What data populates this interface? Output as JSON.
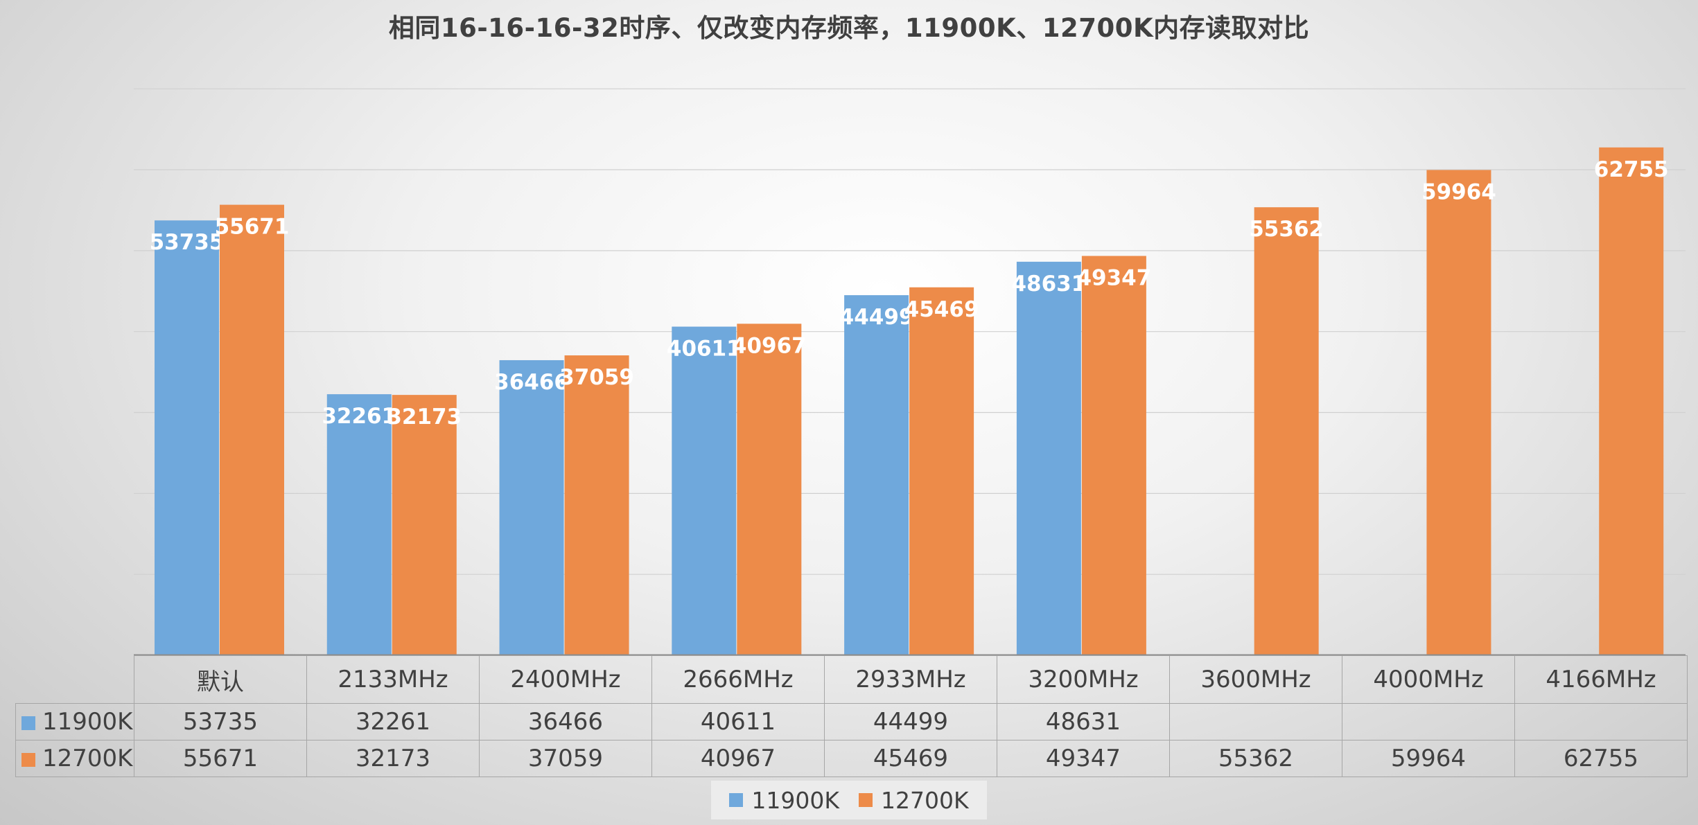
{
  "chart_data": {
    "type": "bar",
    "title": "相同16-16-16-32时序、仅改变内存频率，11900K、12700K内存读取对比",
    "categories": [
      "默认",
      "2133MHz",
      "2400MHz",
      "2666MHz",
      "2933MHz",
      "3200MHz",
      "3600MHz",
      "4000MHz",
      "4166MHz"
    ],
    "series": [
      {
        "name": "11900K",
        "color": "#6fa8dc",
        "values": [
          53735,
          32261,
          36466,
          40611,
          44499,
          48631,
          null,
          null,
          null
        ]
      },
      {
        "name": "12700K",
        "color": "#ed8b49",
        "values": [
          55671,
          32173,
          37059,
          40967,
          45469,
          49347,
          55362,
          59964,
          62755
        ]
      }
    ],
    "ylim": [
      0,
      70000
    ],
    "grid": true,
    "data_labels": true,
    "data_table": true,
    "legend_position": "bottom"
  }
}
